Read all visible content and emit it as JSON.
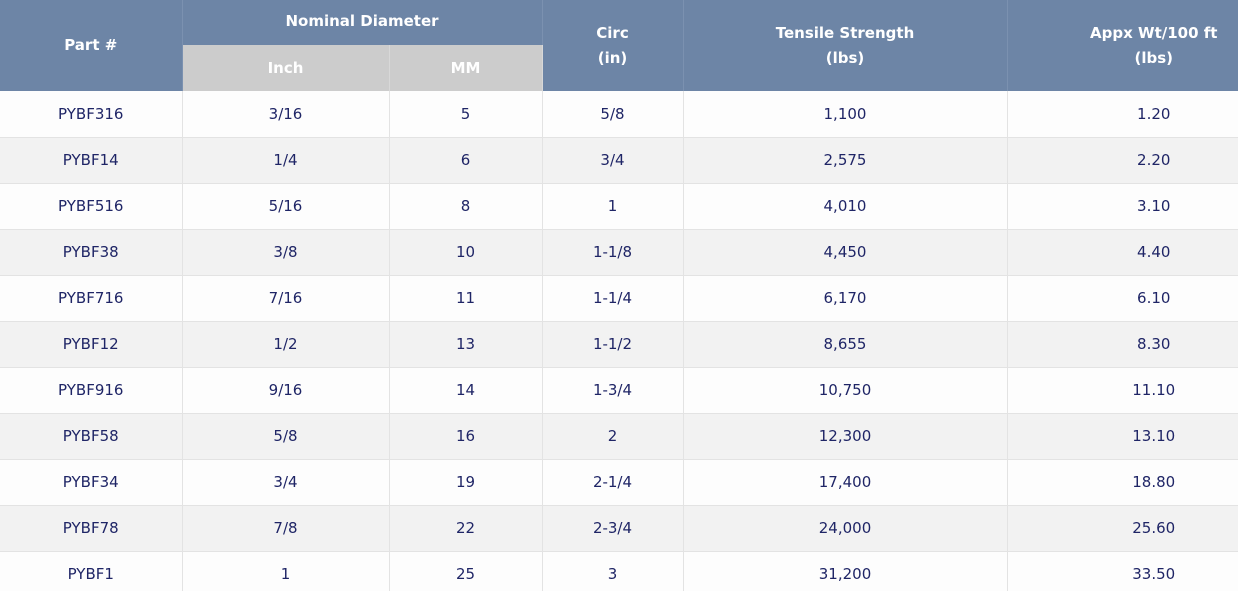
{
  "header": {
    "part": "Part #",
    "nominal_diameter": "Nominal Diameter",
    "inch": "Inch",
    "mm": "MM",
    "circ_line1": "Circ",
    "circ_line2": "(in)",
    "tensile_line1": "Tensile Strength",
    "tensile_line2": "(lbs)",
    "weight_line1": "Appx Wt/100 ft",
    "weight_line2": "(lbs)"
  },
  "rows": [
    [
      "PYBF316",
      "3/16",
      "5",
      "5/8",
      "1,100",
      "1.20"
    ],
    [
      "PYBF14",
      "1/4",
      "6",
      "3/4",
      "2,575",
      "2.20"
    ],
    [
      "PYBF516",
      "5/16",
      "8",
      "1",
      "4,010",
      "3.10"
    ],
    [
      "PYBF38",
      "3/8",
      "10",
      "1-1/8",
      "4,450",
      "4.40"
    ],
    [
      "PYBF716",
      "7/16",
      "11",
      "1-1/4",
      "6,170",
      "6.10"
    ],
    [
      "PYBF12",
      "1/2",
      "13",
      "1-1/2",
      "8,655",
      "8.30"
    ],
    [
      "PYBF916",
      "9/16",
      "14",
      "1-3/4",
      "10,750",
      "11.10"
    ],
    [
      "PYBF58",
      "5/8",
      "16",
      "2",
      "12,300",
      "13.10"
    ],
    [
      "PYBF34",
      "3/4",
      "19",
      "2-1/4",
      "17,400",
      "18.80"
    ],
    [
      "PYBF78",
      "7/8",
      "22",
      "2-3/4",
      "24,000",
      "25.60"
    ],
    [
      "PYBF1",
      "1",
      "25",
      "3",
      "31,200",
      "33.50"
    ]
  ],
  "colors": {
    "header_bg": "#6d85a6",
    "subheader_bg": "#cccccc",
    "cell_text": "#1f2566",
    "row_alt": "#f2f2f2"
  }
}
